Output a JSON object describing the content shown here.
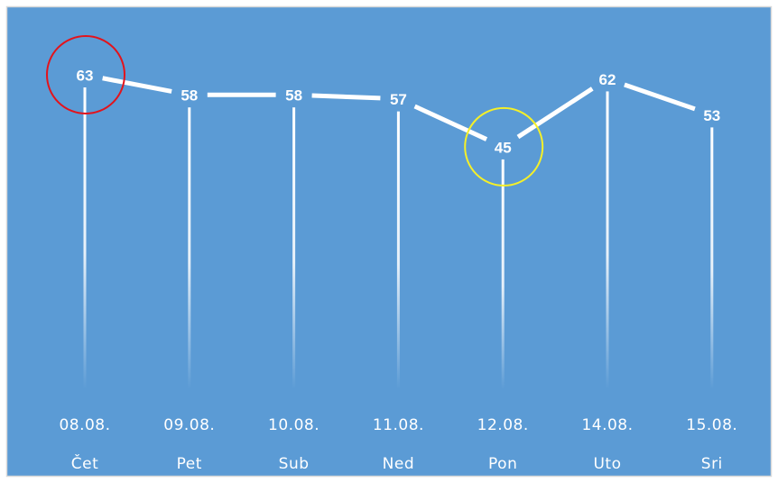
{
  "colors": {
    "background": "#5b9bd5",
    "frame": "#d9d9d9",
    "line": "#ffffff",
    "text": "#ffffff",
    "highlight_max": "#e3131b",
    "highlight_min": "#f5f028"
  },
  "chart_data": {
    "type": "line",
    "title": "",
    "xlabel": "",
    "ylabel": "",
    "ylim": [
      0,
      70
    ],
    "grid": false,
    "legend": "none",
    "categories": [
      {
        "date": "08.08.",
        "day": "Čet"
      },
      {
        "date": "09.08.",
        "day": "Pet"
      },
      {
        "date": "10.08.",
        "day": "Sub"
      },
      {
        "date": "11.08.",
        "day": "Ned"
      },
      {
        "date": "12.08.",
        "day": "Pon"
      },
      {
        "date": "14.08.",
        "day": "Uto"
      },
      {
        "date": "15.08.",
        "day": "Sri"
      }
    ],
    "values": [
      63,
      58,
      58,
      57,
      45,
      62,
      53
    ],
    "data_labels": [
      "63",
      "58",
      "58",
      "57",
      "45",
      "62",
      "53"
    ],
    "annotations": [
      {
        "category_index": 0,
        "shape": "circle",
        "color": "#e3131b"
      },
      {
        "category_index": 4,
        "shape": "circle",
        "color": "#f5f028"
      }
    ]
  }
}
